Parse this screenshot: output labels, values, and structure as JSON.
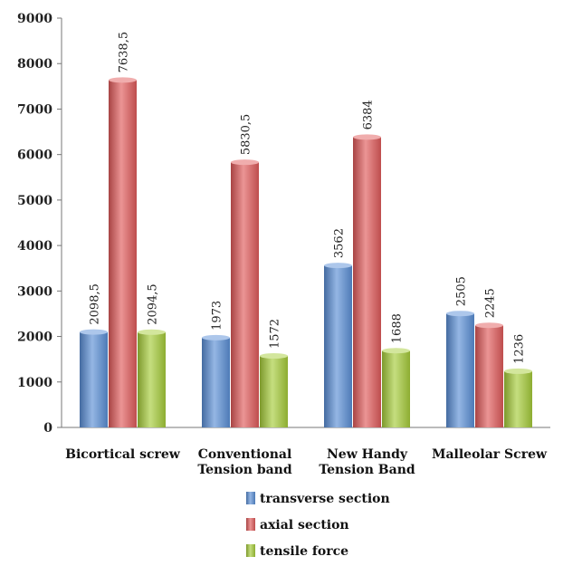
{
  "chart_data": {
    "type": "bar",
    "categories": [
      [
        "Bicortical screw"
      ],
      [
        "Conventional",
        "Tension band"
      ],
      [
        "New Handy",
        "Tension Band"
      ],
      [
        "Malleolar Screw"
      ]
    ],
    "series": [
      {
        "name": "transverse section",
        "color": "#5b8fd6",
        "values": [
          2098.5,
          1973,
          3562,
          2505
        ],
        "labels": [
          "2098,5",
          "1973",
          "3562",
          "2505"
        ]
      },
      {
        "name": "axial section",
        "color": "#e05a5a",
        "values": [
          7638.5,
          5830.5,
          6384,
          2245
        ],
        "labels": [
          "7638,5",
          "5830,5",
          "6384",
          "2245"
        ]
      },
      {
        "name": "tensile force",
        "color": "#a6cc3a",
        "values": [
          2094.5,
          1572,
          1688,
          1236
        ],
        "labels": [
          "2094,5",
          "1572",
          "1688",
          "1236"
        ]
      }
    ],
    "y_ticks": [
      "0",
      "1000",
      "2000",
      "3000",
      "4000",
      "5000",
      "6000",
      "7000",
      "8000",
      "9000"
    ],
    "ylim": [
      0,
      9000
    ],
    "legend_position": "bottom",
    "grid": false
  }
}
